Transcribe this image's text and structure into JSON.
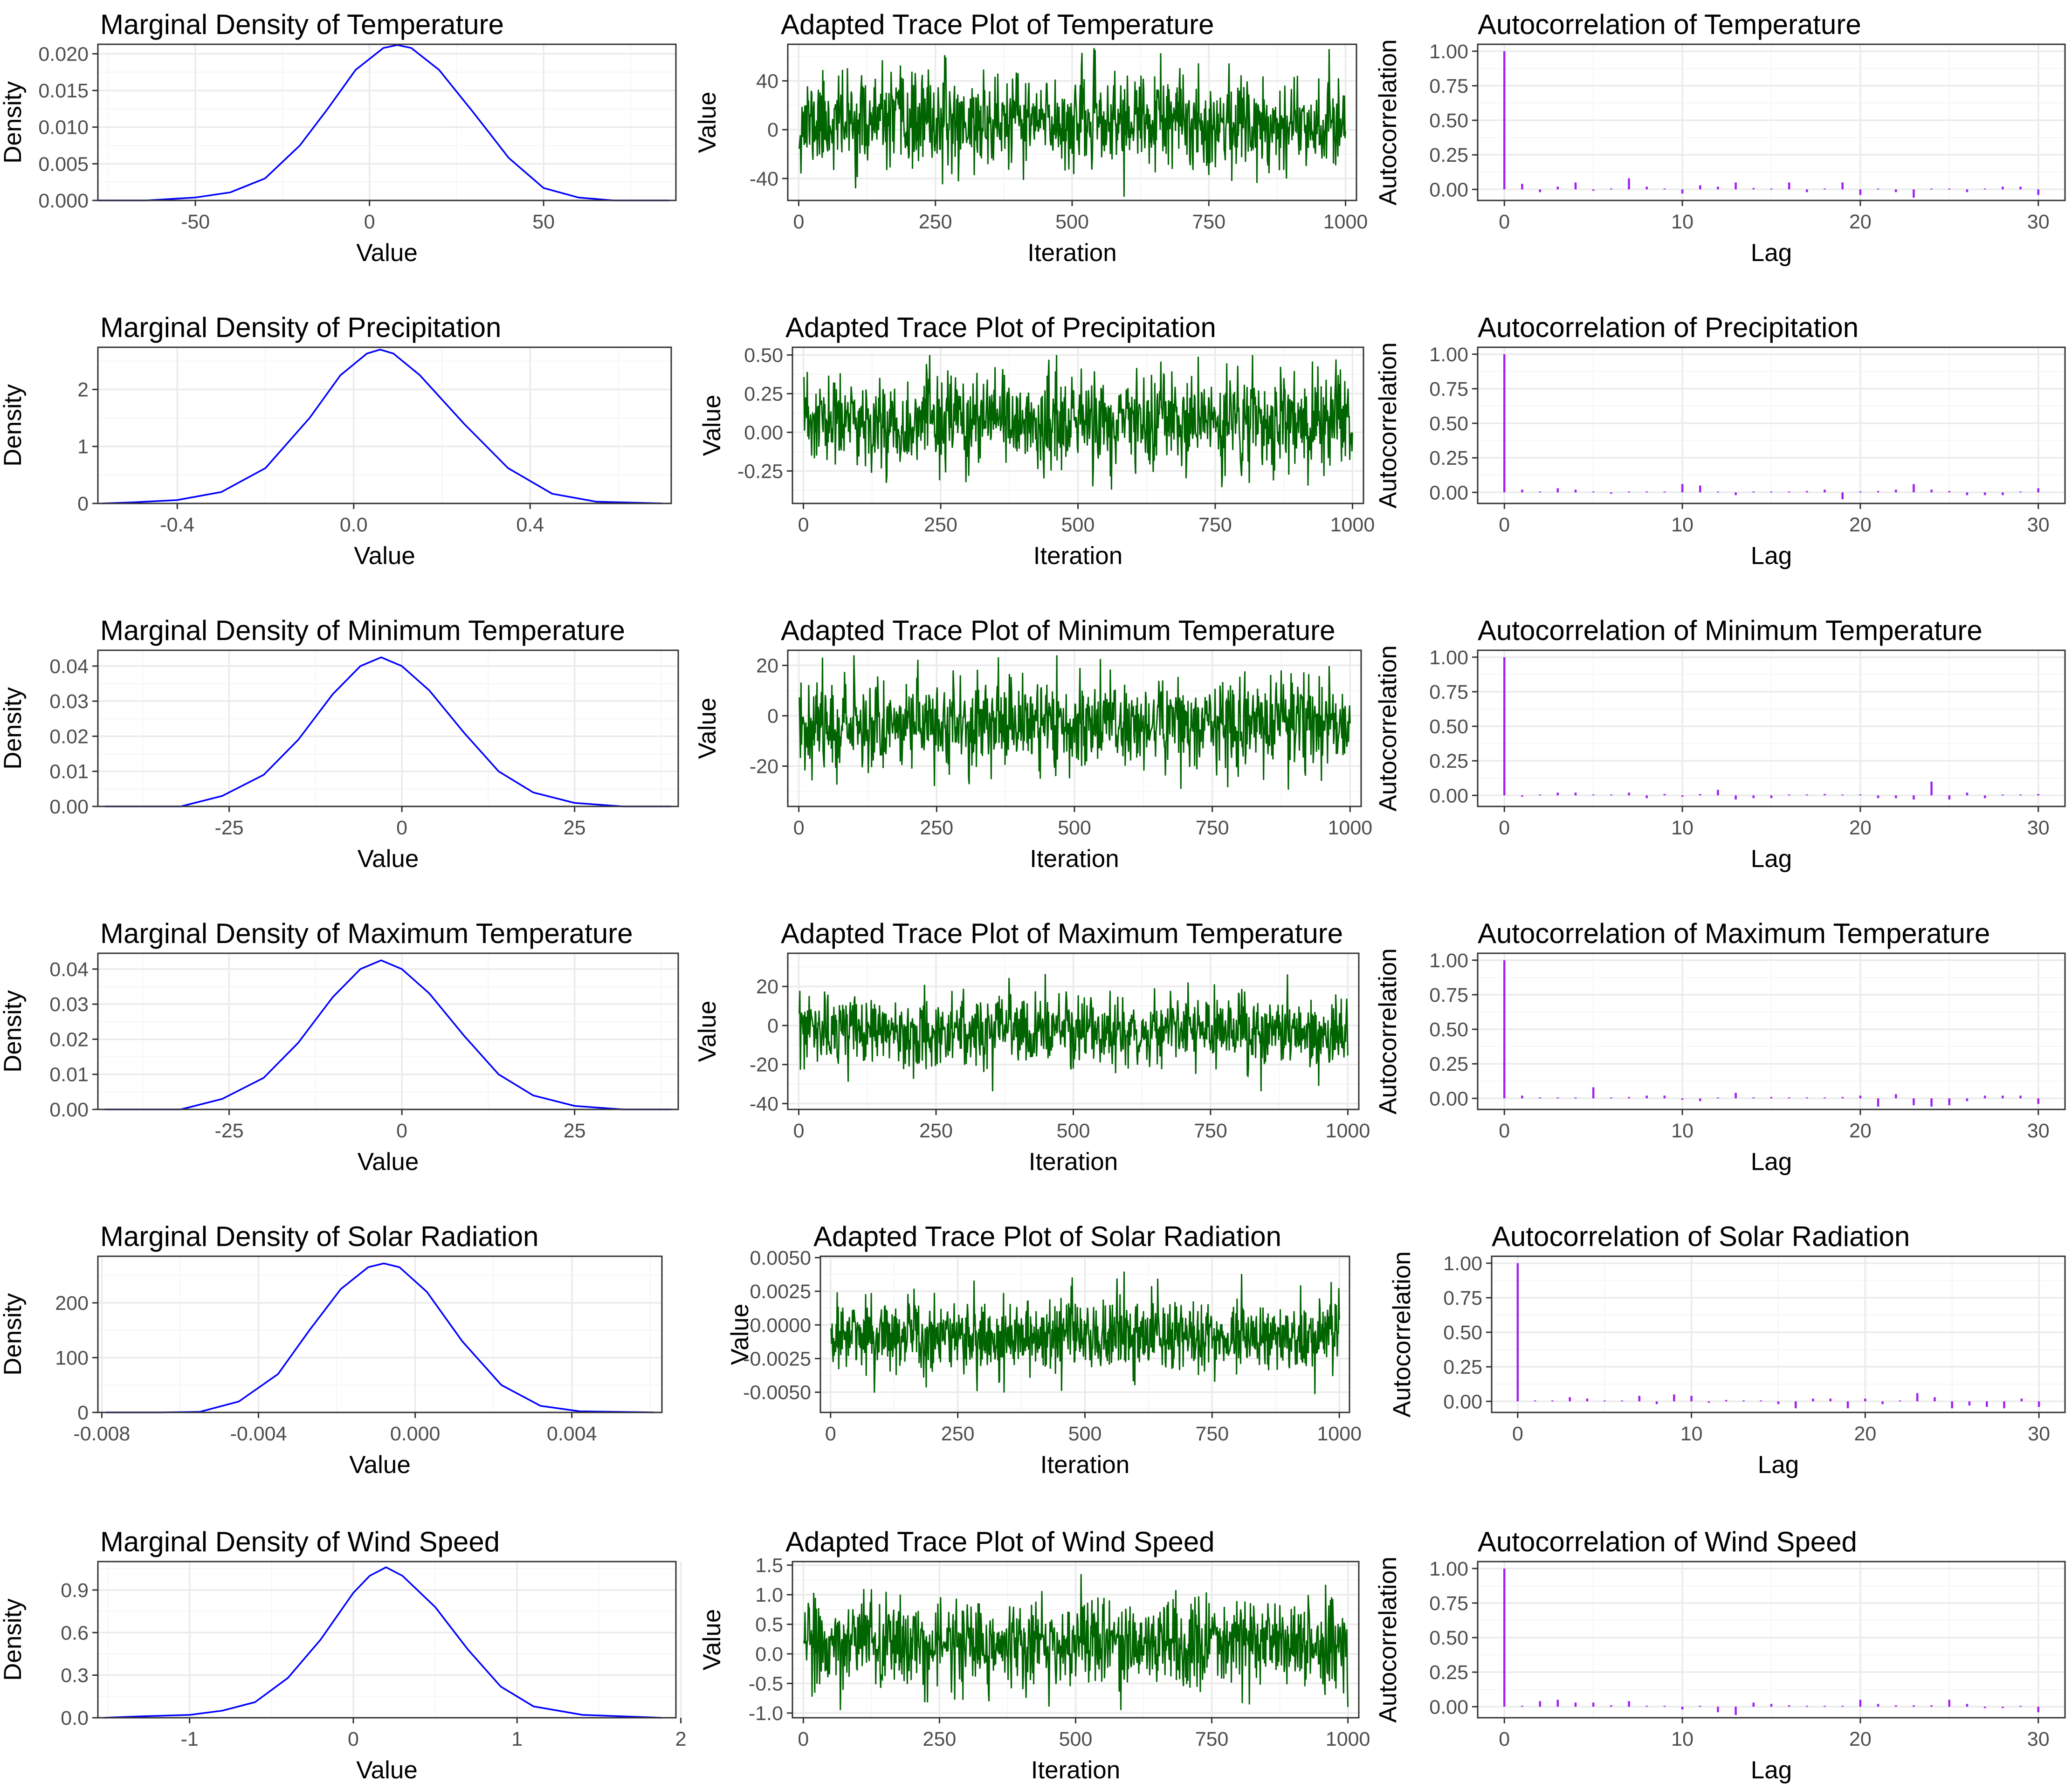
{
  "colors": {
    "density": "#0000ff",
    "trace": "#006400",
    "acf": "#a020f0"
  },
  "chart_data": [
    {
      "type": "line",
      "title": "Marginal Density of Temperature",
      "xlabel": "Value",
      "ylabel": "Density",
      "xlim": [
        -78,
        88
      ],
      "ylim": [
        0,
        0.0213
      ],
      "xticks": [
        -50,
        0,
        50
      ],
      "xtick_labels": [
        "-50",
        "0",
        "50"
      ],
      "yticks": [
        0,
        0.005,
        0.01,
        0.015,
        0.02
      ],
      "ytick_labels": [
        "0.000",
        "0.005",
        "0.010",
        "0.015",
        "0.020"
      ],
      "x": [
        -78,
        -64,
        -50,
        -40,
        -30,
        -20,
        -12,
        -4,
        4,
        8,
        12,
        20,
        30,
        40,
        50,
        60,
        70,
        86
      ],
      "y": [
        0,
        0,
        0.0004,
        0.0011,
        0.003,
        0.0075,
        0.0125,
        0.0178,
        0.0208,
        0.0212,
        0.0208,
        0.0178,
        0.0119,
        0.0058,
        0.0017,
        0.0004,
        0,
        0
      ]
    },
    {
      "type": "line",
      "title": "Adapted Trace Plot of Temperature",
      "xlabel": "Iteration",
      "ylabel": "Value",
      "xlim": [
        -20,
        1020
      ],
      "ylim": [
        -58,
        70
      ],
      "xticks": [
        0,
        250,
        500,
        750,
        1000
      ],
      "xtick_labels": [
        "0",
        "250",
        "500",
        "750",
        "1000"
      ],
      "yticks": [
        -40,
        0,
        40
      ],
      "ytick_labels": [
        "-40",
        "0",
        "40"
      ],
      "trace": {
        "n": 1000,
        "mean": 6,
        "sd": 19,
        "min": -55,
        "max": 67,
        "seed": 11
      }
    },
    {
      "type": "bar",
      "title": "Autocorrelation of Temperature",
      "xlabel": "Lag",
      "ylabel": "Autocorrelation",
      "xlim": [
        -1.5,
        31.5
      ],
      "ylim": [
        -0.08,
        1.05
      ],
      "xticks": [
        0,
        10,
        20,
        30
      ],
      "xtick_labels": [
        "0",
        "10",
        "20",
        "30"
      ],
      "yticks": [
        0,
        0.25,
        0.5,
        0.75,
        1
      ],
      "ytick_labels": [
        "0.00",
        "0.25",
        "0.50",
        "0.75",
        "1.00"
      ],
      "lags": [
        0,
        1,
        2,
        3,
        4,
        5,
        6,
        7,
        8,
        9,
        10,
        11,
        12,
        13,
        14,
        15,
        16,
        17,
        18,
        19,
        20,
        21,
        22,
        23,
        24,
        25,
        26,
        27,
        28,
        29,
        30
      ],
      "values": [
        1,
        0.04,
        -0.02,
        0.02,
        0.05,
        -0.01,
        0,
        0.08,
        0.02,
        0,
        -0.03,
        0.03,
        0.02,
        0.05,
        0.01,
        0,
        0.05,
        -0.02,
        0,
        0.05,
        -0.04,
        0,
        -0.02,
        -0.06,
        0,
        0,
        -0.02,
        0,
        0.02,
        0.02,
        -0.04
      ]
    },
    {
      "type": "line",
      "title": "Marginal Density of Precipitation",
      "xlabel": "Value",
      "ylabel": "Density",
      "xlim": [
        -0.58,
        0.72
      ],
      "ylim": [
        0,
        2.74
      ],
      "xticks": [
        -0.4,
        0,
        0.4
      ],
      "xtick_labels": [
        "-0.4",
        "0.0",
        "0.4"
      ],
      "yticks": [
        0,
        1,
        2
      ],
      "ytick_labels": [
        "0",
        "1",
        "2"
      ],
      "x": [
        -0.57,
        -0.5,
        -0.4,
        -0.3,
        -0.2,
        -0.1,
        -0.03,
        0.03,
        0.06,
        0.09,
        0.15,
        0.25,
        0.35,
        0.45,
        0.55,
        0.7
      ],
      "y": [
        0,
        0.02,
        0.06,
        0.2,
        0.62,
        1.5,
        2.25,
        2.63,
        2.7,
        2.63,
        2.25,
        1.4,
        0.62,
        0.17,
        0.03,
        0
      ]
    },
    {
      "type": "line",
      "title": "Adapted Trace Plot of Precipitation",
      "xlabel": "Iteration",
      "ylabel": "Value",
      "xlim": [
        -20,
        1020
      ],
      "ylim": [
        -0.46,
        0.55
      ],
      "xticks": [
        0,
        250,
        500,
        750,
        1000
      ],
      "xtick_labels": [
        "0",
        "250",
        "500",
        "750",
        "1000"
      ],
      "yticks": [
        -0.25,
        0,
        0.25,
        0.5
      ],
      "ytick_labels": [
        "-0.25",
        "0.00",
        "0.25",
        "0.50"
      ],
      "trace": {
        "n": 1000,
        "mean": 0.06,
        "sd": 0.15,
        "min": -0.42,
        "max": 0.5,
        "seed": 23
      }
    },
    {
      "type": "bar",
      "title": "Autocorrelation of Precipitation",
      "xlabel": "Lag",
      "ylabel": "Autocorrelation",
      "xlim": [
        -1.5,
        31.5
      ],
      "ylim": [
        -0.08,
        1.05
      ],
      "xticks": [
        0,
        10,
        20,
        30
      ],
      "xtick_labels": [
        "0",
        "10",
        "20",
        "30"
      ],
      "yticks": [
        0,
        0.25,
        0.5,
        0.75,
        1
      ],
      "ytick_labels": [
        "0.00",
        "0.25",
        "0.50",
        "0.75",
        "1.00"
      ],
      "lags": [
        0,
        1,
        2,
        3,
        4,
        5,
        6,
        7,
        8,
        9,
        10,
        11,
        12,
        13,
        14,
        15,
        16,
        17,
        18,
        19,
        20,
        21,
        22,
        23,
        24,
        25,
        26,
        27,
        28,
        29,
        30
      ],
      "values": [
        1,
        0.02,
        0,
        0.03,
        0.02,
        0,
        -0.01,
        0,
        0,
        0,
        0.06,
        0.05,
        0,
        -0.02,
        0,
        0,
        0,
        0.01,
        0.02,
        -0.05,
        0,
        0.01,
        0.02,
        0.06,
        0.02,
        0.01,
        -0.02,
        -0.02,
        -0.02,
        0,
        0.03
      ]
    },
    {
      "type": "line",
      "title": "Marginal Density of Minimum Temperature",
      "xlabel": "Value",
      "ylabel": "Density",
      "xlim": [
        -44,
        40
      ],
      "ylim": [
        0,
        0.0445
      ],
      "xticks": [
        -25,
        0,
        25
      ],
      "xtick_labels": [
        "-25",
        "0",
        "25"
      ],
      "yticks": [
        0,
        0.01,
        0.02,
        0.03,
        0.04
      ],
      "ytick_labels": [
        "0.00",
        "0.01",
        "0.02",
        "0.03",
        "0.04"
      ],
      "x": [
        -43,
        -32,
        -26,
        -20,
        -15,
        -10,
        -6,
        -3,
        0,
        4,
        9,
        14,
        19,
        25,
        32,
        39
      ],
      "y": [
        0,
        0,
        0.003,
        0.009,
        0.019,
        0.032,
        0.04,
        0.0425,
        0.04,
        0.033,
        0.021,
        0.01,
        0.004,
        0.001,
        0,
        0
      ]
    },
    {
      "type": "line",
      "title": "Adapted Trace Plot of Minimum Temperature",
      "xlabel": "Iteration",
      "ylabel": "Value",
      "xlim": [
        -20,
        1020
      ],
      "ylim": [
        -36,
        26
      ],
      "xticks": [
        0,
        250,
        500,
        750,
        1000
      ],
      "xtick_labels": [
        "0",
        "250",
        "500",
        "750",
        "1000"
      ],
      "yticks": [
        -20,
        0,
        20
      ],
      "ytick_labels": [
        "-20",
        "0",
        "20"
      ],
      "trace": {
        "n": 1000,
        "mean": -3,
        "sd": 9,
        "min": -33,
        "max": 24,
        "seed": 37
      }
    },
    {
      "type": "bar",
      "title": "Autocorrelation of Minimum Temperature",
      "xlabel": "Lag",
      "ylabel": "Autocorrelation",
      "xlim": [
        -1.5,
        31.5
      ],
      "ylim": [
        -0.08,
        1.05
      ],
      "xticks": [
        0,
        10,
        20,
        30
      ],
      "xtick_labels": [
        "0",
        "10",
        "20",
        "30"
      ],
      "yticks": [
        0,
        0.25,
        0.5,
        0.75,
        1
      ],
      "ytick_labels": [
        "0.00",
        "0.25",
        "0.50",
        "0.75",
        "1.00"
      ],
      "lags": [
        0,
        1,
        2,
        3,
        4,
        5,
        6,
        7,
        8,
        9,
        10,
        11,
        12,
        13,
        14,
        15,
        16,
        17,
        18,
        19,
        20,
        21,
        22,
        23,
        24,
        25,
        26,
        27,
        28,
        29,
        30
      ],
      "values": [
        1,
        -0.01,
        0,
        0.02,
        0.02,
        0,
        0,
        0.02,
        -0.02,
        0.01,
        -0.01,
        0.01,
        0.04,
        -0.03,
        -0.02,
        -0.02,
        0,
        0,
        0.01,
        0,
        0,
        -0.02,
        -0.02,
        -0.03,
        0.1,
        -0.03,
        0.02,
        -0.02,
        0,
        0,
        0.01
      ]
    },
    {
      "type": "line",
      "title": "Marginal Density of Maximum Temperature",
      "xlabel": "Value",
      "ylabel": "Density",
      "xlim": [
        -44,
        40
      ],
      "ylim": [
        0,
        0.0445
      ],
      "xticks": [
        -25,
        0,
        25
      ],
      "xtick_labels": [
        "-25",
        "0",
        "25"
      ],
      "yticks": [
        0,
        0.01,
        0.02,
        0.03,
        0.04
      ],
      "ytick_labels": [
        "0.00",
        "0.01",
        "0.02",
        "0.03",
        "0.04"
      ],
      "x": [
        -43,
        -32,
        -26,
        -20,
        -15,
        -10,
        -6,
        -3,
        0,
        4,
        9,
        14,
        19,
        25,
        32,
        39
      ],
      "y": [
        0,
        0,
        0.003,
        0.009,
        0.019,
        0.032,
        0.04,
        0.0425,
        0.04,
        0.033,
        0.021,
        0.01,
        0.004,
        0.001,
        0,
        0
      ]
    },
    {
      "type": "line",
      "title": "Adapted Trace Plot of Maximum Temperature",
      "xlabel": "Iteration",
      "ylabel": "Value",
      "xlim": [
        -20,
        1020
      ],
      "ylim": [
        -43,
        37
      ],
      "xticks": [
        0,
        250,
        500,
        750,
        1000
      ],
      "xtick_labels": [
        "0",
        "250",
        "500",
        "750",
        "1000"
      ],
      "yticks": [
        -40,
        -20,
        0,
        20
      ],
      "ytick_labels": [
        "-40",
        "-20",
        "0",
        "20"
      ],
      "trace": {
        "n": 1000,
        "mean": -3,
        "sd": 9,
        "min": -40,
        "max": 35,
        "seed": 53
      }
    },
    {
      "type": "bar",
      "title": "Autocorrelation of Maximum Temperature",
      "xlabel": "Lag",
      "ylabel": "Autocorrelation",
      "xlim": [
        -1.5,
        31.5
      ],
      "ylim": [
        -0.08,
        1.05
      ],
      "xticks": [
        0,
        10,
        20,
        30
      ],
      "xtick_labels": [
        "0",
        "10",
        "20",
        "30"
      ],
      "yticks": [
        0,
        0.25,
        0.5,
        0.75,
        1
      ],
      "ytick_labels": [
        "0.00",
        "0.25",
        "0.50",
        "0.75",
        "1.00"
      ],
      "lags": [
        0,
        1,
        2,
        3,
        4,
        5,
        6,
        7,
        8,
        9,
        10,
        11,
        12,
        13,
        14,
        15,
        16,
        17,
        18,
        19,
        20,
        21,
        22,
        23,
        24,
        25,
        26,
        27,
        28,
        29,
        30
      ],
      "values": [
        1,
        0.02,
        0,
        0,
        0,
        0.08,
        0,
        0.01,
        0.02,
        0.02,
        -0.01,
        -0.02,
        0,
        0.04,
        0,
        0.01,
        0,
        0,
        0,
        0.01,
        0.02,
        -0.06,
        0.03,
        -0.05,
        -0.06,
        -0.05,
        -0.02,
        0.02,
        0.02,
        0.02,
        -0.04
      ]
    },
    {
      "type": "line",
      "title": "Marginal Density of Solar Radiation",
      "xlabel": "Value",
      "ylabel": "Density",
      "xlim": [
        -0.0081,
        0.0063
      ],
      "ylim": [
        0,
        285
      ],
      "xticks": [
        -0.008,
        -0.004,
        0,
        0.004
      ],
      "xtick_labels": [
        "-0.008",
        "-0.004",
        "0.000",
        "0.004"
      ],
      "yticks": [
        0,
        100,
        200
      ],
      "ytick_labels": [
        "0",
        "100",
        "200"
      ],
      "x": [
        -0.0079,
        -0.0065,
        -0.0055,
        -0.0045,
        -0.0035,
        -0.0027,
        -0.0019,
        -0.0012,
        -0.0008,
        -0.0004,
        0.0003,
        0.0012,
        0.0022,
        0.0032,
        0.0042,
        0.0061
      ],
      "y": [
        0,
        0,
        1,
        20,
        70,
        150,
        225,
        265,
        272,
        265,
        220,
        130,
        50,
        12,
        2,
        0
      ]
    },
    {
      "type": "line",
      "title": "Adapted Trace Plot of Solar Radiation",
      "xlabel": "Iteration",
      "ylabel": "Value",
      "xlim": [
        -20,
        1020
      ],
      "ylim": [
        -0.0065,
        0.0051
      ],
      "xticks": [
        0,
        250,
        500,
        750,
        1000
      ],
      "xtick_labels": [
        "0",
        "250",
        "500",
        "750",
        "1000"
      ],
      "yticks": [
        -0.005,
        -0.0025,
        0,
        0.0025,
        0.005
      ],
      "ytick_labels": [
        "-0.0050",
        "-0.0025",
        "0.0000",
        "0.0025",
        "0.0050"
      ],
      "trace": {
        "n": 1000,
        "mean": -0.0008,
        "sd": 0.0014,
        "min": -0.0062,
        "max": 0.0047,
        "seed": 71
      }
    },
    {
      "type": "bar",
      "title": "Autocorrelation of Solar Radiation",
      "xlabel": "Lag",
      "ylabel": "Autocorrelation",
      "xlim": [
        -1.5,
        31.5
      ],
      "ylim": [
        -0.08,
        1.05
      ],
      "xticks": [
        0,
        10,
        20,
        30
      ],
      "xtick_labels": [
        "0",
        "10",
        "20",
        "30"
      ],
      "yticks": [
        0,
        0.25,
        0.5,
        0.75,
        1
      ],
      "ytick_labels": [
        "0.00",
        "0.25",
        "0.50",
        "0.75",
        "1.00"
      ],
      "lags": [
        0,
        1,
        2,
        3,
        4,
        5,
        6,
        7,
        8,
        9,
        10,
        11,
        12,
        13,
        14,
        15,
        16,
        17,
        18,
        19,
        20,
        21,
        22,
        23,
        24,
        25,
        26,
        27,
        28,
        29,
        30
      ],
      "values": [
        1,
        0,
        0,
        0.03,
        0.02,
        0,
        0,
        0.04,
        -0.02,
        0.05,
        0.04,
        -0.01,
        0.01,
        0,
        0,
        -0.02,
        -0.05,
        0.02,
        0.02,
        -0.05,
        0.02,
        -0.02,
        0,
        0.06,
        0.03,
        -0.05,
        -0.03,
        -0.04,
        -0.05,
        0.02,
        -0.04
      ]
    },
    {
      "type": "line",
      "title": "Marginal Density of Wind Speed",
      "xlabel": "Value",
      "ylabel": "Density",
      "xlim": [
        -1.56,
        1.97
      ],
      "ylim": [
        0,
        1.1
      ],
      "xticks": [
        -1,
        0,
        1,
        2
      ],
      "xtick_labels": [
        "-1",
        "0",
        "1",
        "2"
      ],
      "yticks": [
        0,
        0.3,
        0.6,
        0.9
      ],
      "ytick_labels": [
        "0.0",
        "0.3",
        "0.6",
        "0.9"
      ],
      "x": [
        -1.52,
        -1.3,
        -1,
        -0.8,
        -0.6,
        -0.4,
        -0.2,
        0,
        0.1,
        0.2,
        0.3,
        0.5,
        0.7,
        0.9,
        1.1,
        1.4,
        1.88
      ],
      "y": [
        0,
        0.01,
        0.02,
        0.05,
        0.11,
        0.28,
        0.55,
        0.88,
        1,
        1.06,
        1,
        0.78,
        0.48,
        0.22,
        0.08,
        0.02,
        0
      ]
    },
    {
      "type": "line",
      "title": "Adapted Trace Plot of Wind Speed",
      "xlabel": "Iteration",
      "ylabel": "Value",
      "xlim": [
        -20,
        1020
      ],
      "ylim": [
        -1.08,
        1.56
      ],
      "xticks": [
        0,
        250,
        500,
        750,
        1000
      ],
      "xtick_labels": [
        "0",
        "250",
        "500",
        "750",
        "1000"
      ],
      "yticks": [
        -1,
        -0.5,
        0,
        0.5,
        1,
        1.5
      ],
      "ytick_labels": [
        "-1.0",
        "-0.5",
        "0.0",
        "0.5",
        "1.0",
        "1.5"
      ],
      "trace": {
        "n": 1000,
        "mean": 0.17,
        "sd": 0.37,
        "min": -0.95,
        "max": 1.4,
        "seed": 89
      }
    },
    {
      "type": "bar",
      "title": "Autocorrelation of Wind Speed",
      "xlabel": "Lag",
      "ylabel": "Autocorrelation",
      "xlim": [
        -1.5,
        31.5
      ],
      "ylim": [
        -0.08,
        1.05
      ],
      "xticks": [
        0,
        10,
        20,
        30
      ],
      "xtick_labels": [
        "0",
        "10",
        "20",
        "30"
      ],
      "yticks": [
        0,
        0.25,
        0.5,
        0.75,
        1
      ],
      "ytick_labels": [
        "0.00",
        "0.25",
        "0.50",
        "0.75",
        "1.00"
      ],
      "lags": [
        0,
        1,
        2,
        3,
        4,
        5,
        6,
        7,
        8,
        9,
        10,
        11,
        12,
        13,
        14,
        15,
        16,
        17,
        18,
        19,
        20,
        21,
        22,
        23,
        24,
        25,
        26,
        27,
        28,
        29,
        30
      ],
      "values": [
        1,
        0,
        0.04,
        0.05,
        0.03,
        0.03,
        0.01,
        0.04,
        0,
        0,
        -0.02,
        0,
        -0.04,
        -0.06,
        0.03,
        0.02,
        0.01,
        0,
        0,
        0,
        0.05,
        0.02,
        0.01,
        0.01,
        0.01,
        0.05,
        0.02,
        -0.01,
        -0.01,
        0,
        -0.04
      ]
    }
  ]
}
